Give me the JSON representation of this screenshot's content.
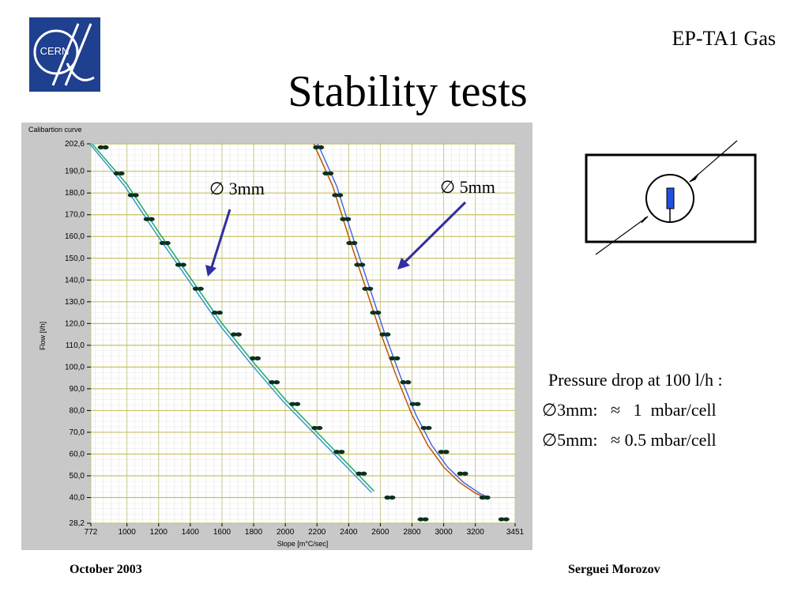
{
  "header": {
    "logo_text": "CERN",
    "group": "EP-TA1 Gas",
    "title": "Stability tests"
  },
  "chart_data": {
    "type": "line",
    "title": "Calibartion curve",
    "xlabel": "Slope [m°C/sec]",
    "ylabel": "Flow [l/h]",
    "xlim": [
      772,
      3451
    ],
    "ylim": [
      28.2,
      202.6
    ],
    "x_ticks": [
      "772",
      "1000",
      "1200",
      "1400",
      "1600",
      "1800",
      "2000",
      "2200",
      "2400",
      "2600",
      "2800",
      "3000",
      "3200",
      "3451"
    ],
    "y_ticks": [
      "202,6",
      "190,0",
      "180,0",
      "170,0",
      "160,0",
      "150,0",
      "140,0",
      "130,0",
      "120,0",
      "110,0",
      "100,0",
      "90,0",
      "80,0",
      "70,0",
      "60,0",
      "50,0",
      "40,0",
      "28,2"
    ],
    "grid": true,
    "annotations": [
      "∅ 3mm",
      "∅ 5mm"
    ],
    "series": [
      {
        "name": "∅ 3mm",
        "color": "#20b070",
        "points": [
          [
            850,
            201
          ],
          [
            950,
            189
          ],
          [
            1040,
            179
          ],
          [
            1140,
            168
          ],
          [
            1240,
            157
          ],
          [
            1340,
            147
          ],
          [
            1450,
            136
          ],
          [
            1570,
            125
          ],
          [
            1690,
            115
          ],
          [
            1810,
            104
          ],
          [
            1930,
            93
          ],
          [
            2060,
            83
          ],
          [
            2200,
            72
          ],
          [
            2340,
            61
          ],
          [
            2480,
            51
          ]
        ],
        "fit": [
          [
            780,
            210
          ],
          [
            1000,
            184
          ],
          [
            1200,
            162
          ],
          [
            1400,
            141
          ],
          [
            1600,
            120
          ],
          [
            1800,
            102
          ],
          [
            2000,
            85
          ],
          [
            2200,
            70
          ],
          [
            2400,
            55
          ],
          [
            2560,
            43
          ]
        ]
      },
      {
        "name": "∅ 5mm",
        "color": "#c06010",
        "points": [
          [
            2210,
            201
          ],
          [
            2270,
            189
          ],
          [
            2330,
            179
          ],
          [
            2380,
            168
          ],
          [
            2420,
            157
          ],
          [
            2470,
            147
          ],
          [
            2520,
            136
          ],
          [
            2570,
            125
          ],
          [
            2630,
            115
          ],
          [
            2690,
            104
          ],
          [
            2760,
            93
          ],
          [
            2820,
            83
          ],
          [
            2890,
            72
          ],
          [
            3000,
            61
          ],
          [
            3120,
            51
          ],
          [
            3260,
            40
          ],
          [
            2660,
            40
          ],
          [
            2870,
            30
          ],
          [
            3380,
            30
          ]
        ],
        "fit": [
          [
            2180,
            210
          ],
          [
            2300,
            183
          ],
          [
            2400,
            160
          ],
          [
            2500,
            138
          ],
          [
            2600,
            116
          ],
          [
            2700,
            96
          ],
          [
            2800,
            78
          ],
          [
            2900,
            64
          ],
          [
            3000,
            54
          ],
          [
            3100,
            47
          ],
          [
            3200,
            42
          ],
          [
            3260,
            40
          ]
        ]
      }
    ]
  },
  "schematic": {
    "description_icon": "sensor-cross-section-icon"
  },
  "pressure": {
    "title": "Pressure drop at 100 l/h :",
    "line1": "∅3mm:   ≈   1  mbar/cell",
    "line2": "∅5mm:   ≈ 0.5 mbar/cell"
  },
  "footer": {
    "date": "October 2003",
    "author": "Serguei Morozov"
  }
}
